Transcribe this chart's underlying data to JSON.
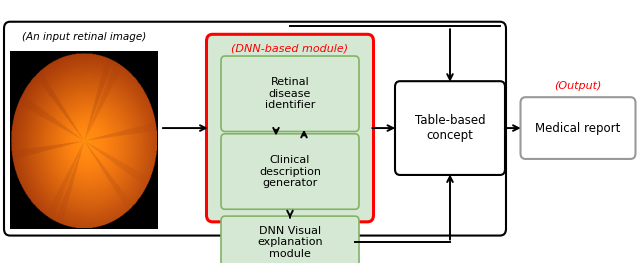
{
  "fig_width": 6.4,
  "fig_height": 2.63,
  "dpi": 100,
  "bg_color": "#ffffff",
  "retinal_image_label": "(An input retinal image)",
  "dnn_module_label": "(DNN-based module)",
  "output_label": "(Output)",
  "box1_text": "Retinal\ndisease\nidentifier",
  "box2_text": "Clinical\ndescription\ngenerator",
  "box3_text": "DNN Visual\nexplanation\nmodule",
  "box4_text": "Table-based\nconcept",
  "box5_text": "Medical report",
  "green_fill": "#d5e8d4",
  "green_edge": "#82b366",
  "red_edge": "#ff0000",
  "black_edge": "#000000",
  "gray_edge": "#999999",
  "white_fill": "#ffffff",
  "red_text_color": "#ff0000",
  "black_text_color": "#000000"
}
